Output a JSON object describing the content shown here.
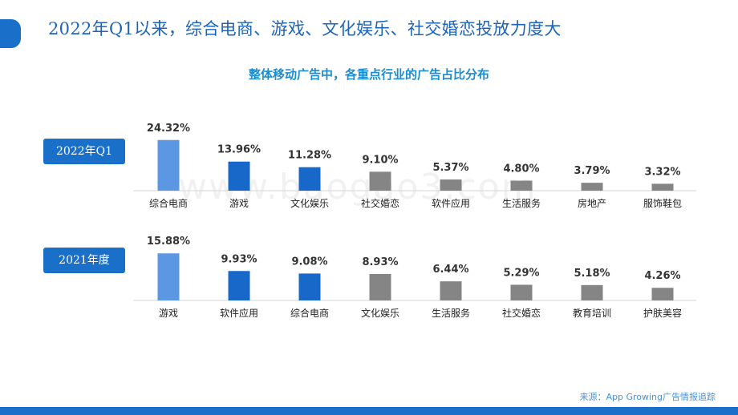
{
  "header": {
    "title": "2022年Q1以来，综合电商、游戏、文化娱乐、社交婚恋投放力度大",
    "subtitle": "整体移动广告中，各重点行业的广告占比分布"
  },
  "watermark": "www.baogao3.com",
  "source": "来源：App Growing广告情报追踪",
  "colors": {
    "accent": "#1a6fc9",
    "bar_light_blue": "#5c97e3",
    "bar_blue": "#1768c8",
    "bar_gray": "#858585"
  },
  "chart_data": [
    {
      "type": "bar",
      "label": "2022年Q1",
      "categories": [
        "综合电商",
        "游戏",
        "文化娱乐",
        "社交婚恋",
        "软件应用",
        "生活服务",
        "房地产",
        "服饰鞋包"
      ],
      "values": [
        24.32,
        13.96,
        11.28,
        9.1,
        5.37,
        4.8,
        3.79,
        3.32
      ],
      "value_labels": [
        "24.32%",
        "13.96%",
        "11.28%",
        "9.10%",
        "5.37%",
        "4.80%",
        "3.79%",
        "3.32%"
      ],
      "bar_colors": [
        "#5c97e3",
        "#1768c8",
        "#1768c8",
        "#858585",
        "#858585",
        "#858585",
        "#858585",
        "#858585"
      ],
      "grid": false
    },
    {
      "type": "bar",
      "label": "2021年度",
      "categories": [
        "游戏",
        "软件应用",
        "综合电商",
        "文化娱乐",
        "生活服务",
        "社交婚恋",
        "教育培训",
        "护肤美容"
      ],
      "values": [
        15.88,
        9.93,
        9.08,
        8.93,
        6.44,
        5.29,
        5.18,
        4.26
      ],
      "value_labels": [
        "15.88%",
        "9.93%",
        "9.08%",
        "8.93%",
        "6.44%",
        "5.29%",
        "5.18%",
        "4.26%"
      ],
      "bar_colors": [
        "#5c97e3",
        "#1768c8",
        "#1768c8",
        "#858585",
        "#858585",
        "#858585",
        "#858585",
        "#858585"
      ],
      "grid": false
    }
  ]
}
